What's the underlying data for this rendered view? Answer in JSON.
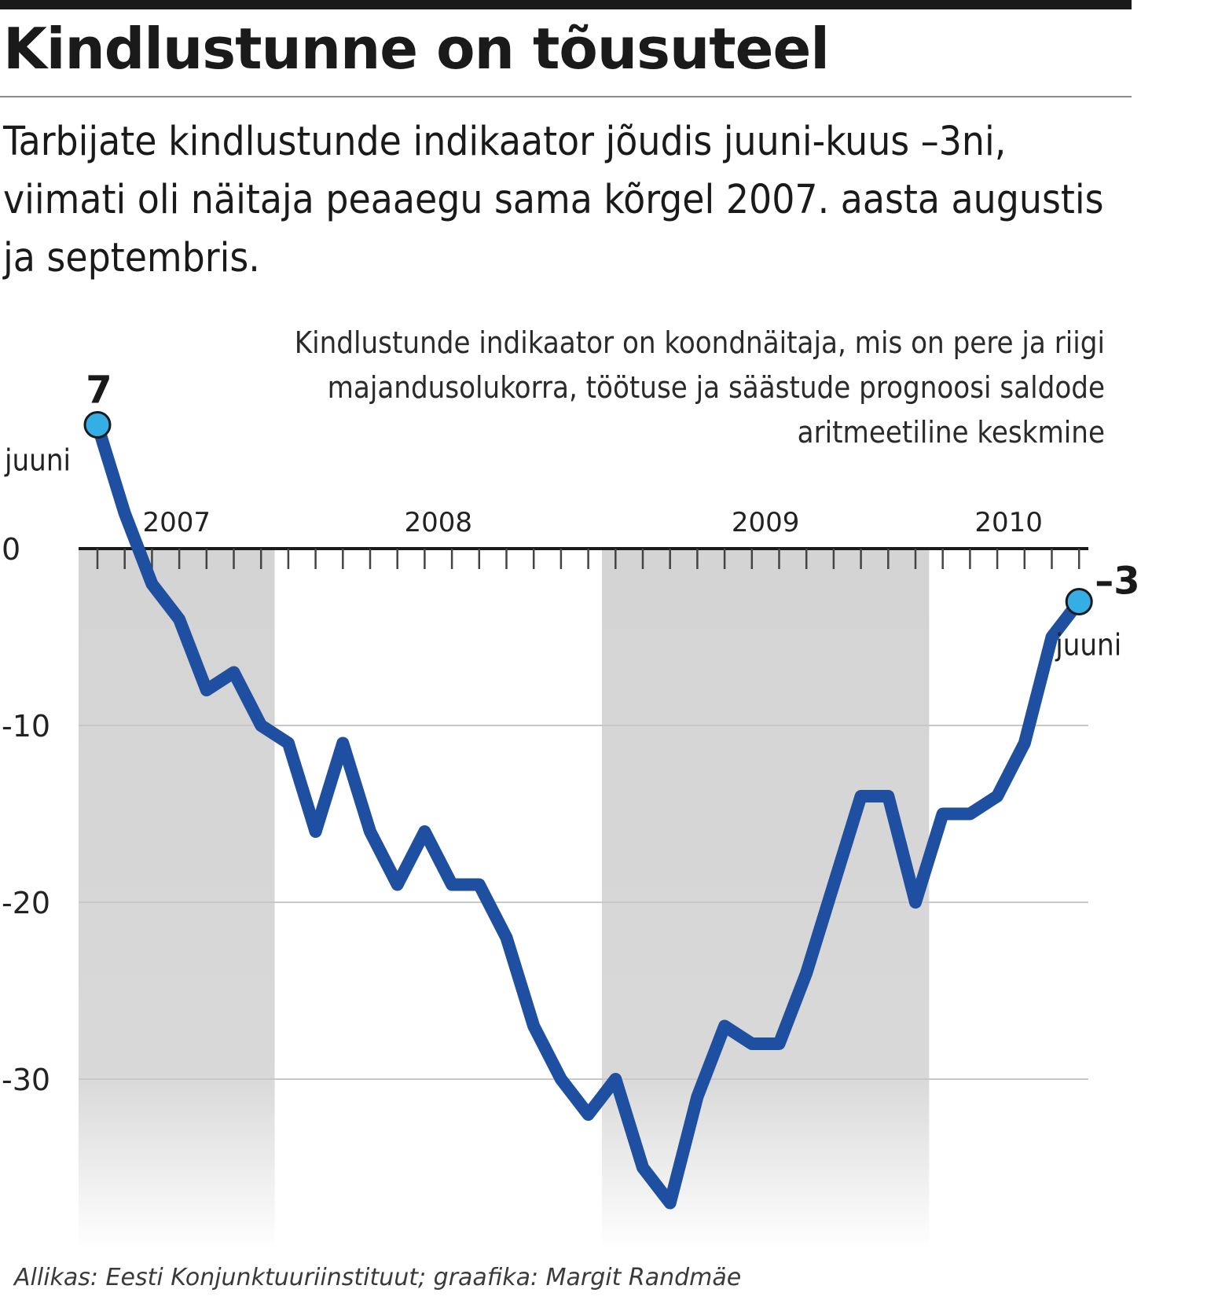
{
  "header": {
    "title": "Kindlustunne on tõusuteel",
    "subtitle": "Tarbijate kindlustunde indikaator jõudis juuni-kuus –3ni, viimati oli näitaja peaaegu sama kõrgel 2007. aasta augustis ja septembris.",
    "note": "Kindlustunde indikaator on koondnäitaja, mis on pere ja riigi majandusolukorra, töötuse ja säästude prognoosi saldode aritmeetiline keskmine"
  },
  "footer": {
    "source": "Allikas: Eesti Konjunktuuriinstituut; graafika: Margit Randmäe"
  },
  "chart_data": {
    "type": "line",
    "title": "Kindlustunne on tõusuteel",
    "xlabel": "",
    "ylabel": "",
    "ylim": [
      -40,
      8
    ],
    "yticks": [
      "0",
      "-10",
      "-20",
      "-30"
    ],
    "year_labels": [
      "2007",
      "2008",
      "2009",
      "2010"
    ],
    "shaded_years": [
      "2007",
      "2009"
    ],
    "grid": true,
    "x": [
      "2007-06",
      "2007-07",
      "2007-08",
      "2007-09",
      "2007-10",
      "2007-11",
      "2007-12",
      "2008-01",
      "2008-02",
      "2008-03",
      "2008-04",
      "2008-05",
      "2008-06",
      "2008-07",
      "2008-08",
      "2008-09",
      "2008-10",
      "2008-11",
      "2008-12",
      "2009-01",
      "2009-02",
      "2009-03",
      "2009-04",
      "2009-05",
      "2009-06",
      "2009-07",
      "2009-08",
      "2009-09",
      "2009-10",
      "2009-11",
      "2009-12",
      "2010-01",
      "2010-02",
      "2010-03",
      "2010-04",
      "2010-05",
      "2010-06"
    ],
    "values": [
      7,
      2,
      -2,
      -4,
      -8,
      -7,
      -10,
      -11,
      -16,
      -11,
      -16,
      -19,
      -16,
      -19,
      -19,
      -22,
      -27,
      -30,
      -32,
      -30,
      -35,
      -37,
      -31,
      -27,
      -28,
      -28,
      -24,
      -19,
      -14,
      -14,
      -20,
      -15,
      -15,
      -14,
      -11,
      -5,
      -3
    ],
    "annotations": {
      "first_value": "7",
      "first_label": "juuni",
      "last_value": "–3",
      "last_label": "juuni"
    },
    "colors": {
      "line": "#1f4fa0",
      "marker": "#35aee6",
      "shade": "#d4d4d4",
      "grid": "#c8c8c8"
    }
  }
}
